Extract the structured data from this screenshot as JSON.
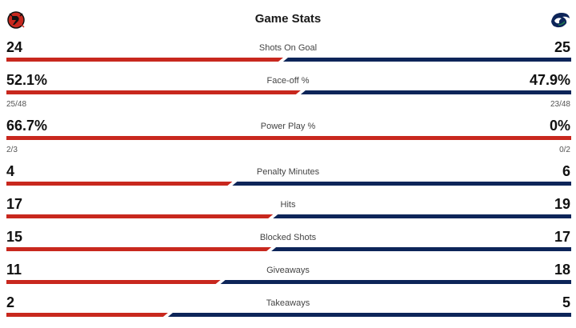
{
  "title": "Game Stats",
  "colors": {
    "home": "#c8281e",
    "away": "#0d2559",
    "text": "#111111",
    "muted": "#555555"
  },
  "home_team": {
    "logo_icon": "new-jersey-devils-logo-icon"
  },
  "away_team": {
    "logo_icon": "vancouver-canucks-logo-icon"
  },
  "stats": [
    {
      "label": "Shots On Goal",
      "home": "24",
      "away": "25",
      "home_share": 0.49
    },
    {
      "label": "Face-off %",
      "home": "52.1%",
      "away": "47.9%",
      "home_share": 0.521,
      "home_detail": "25/48",
      "away_detail": "23/48"
    },
    {
      "label": "Power Play %",
      "home": "66.7%",
      "away": "0%",
      "home_share": 1.0,
      "home_detail": "2/3",
      "away_detail": "0/2"
    },
    {
      "label": "Penalty Minutes",
      "home": "4",
      "away": "6",
      "home_share": 0.4
    },
    {
      "label": "Hits",
      "home": "17",
      "away": "19",
      "home_share": 0.472
    },
    {
      "label": "Blocked Shots",
      "home": "15",
      "away": "17",
      "home_share": 0.469
    },
    {
      "label": "Giveaways",
      "home": "11",
      "away": "18",
      "home_share": 0.379
    },
    {
      "label": "Takeaways",
      "home": "2",
      "away": "5",
      "home_share": 0.286
    }
  ]
}
